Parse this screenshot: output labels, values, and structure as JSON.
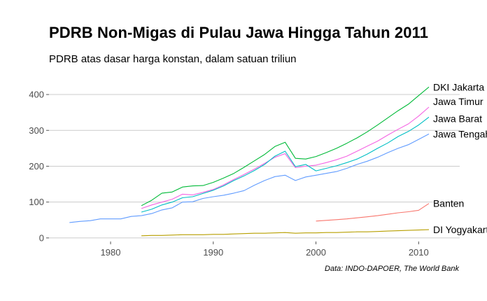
{
  "chart_data": {
    "type": "line",
    "title": "PDRB Non-Migas di Pulau Jawa Hingga Tahun 2011",
    "subtitle": "PDRB atas dasar harga konstan, dalam satuan triliun",
    "caption": "Data: INDO-DAPOER, The World Bank",
    "xlabel": "",
    "ylabel": "",
    "xlim": [
      1974,
      2014
    ],
    "ylim": [
      -10,
      445
    ],
    "x_ticks": [
      1980,
      1990,
      2000,
      2010
    ],
    "y_ticks": [
      0,
      100,
      200,
      300,
      400
    ],
    "grid": "horizontal",
    "legend": "direct labels at line ends",
    "series": [
      {
        "name": "DKI Jakarta",
        "color": "#00ba38",
        "x": [
          1983,
          1984,
          1985,
          1986,
          1987,
          1988,
          1989,
          1990,
          1991,
          1992,
          1993,
          1994,
          1995,
          1996,
          1997,
          1998,
          1999,
          2000,
          2001,
          2002,
          2003,
          2004,
          2005,
          2006,
          2007,
          2008,
          2009,
          2010,
          2011
        ],
        "y": [
          90,
          105,
          125,
          128,
          142,
          145,
          146,
          155,
          167,
          180,
          197,
          215,
          233,
          255,
          267,
          222,
          220,
          227,
          238,
          250,
          264,
          279,
          296,
          315,
          335,
          355,
          373,
          397,
          421
        ]
      },
      {
        "name": "Jawa Timur",
        "color": "#f564e3",
        "x": [
          1983,
          1984,
          1985,
          1986,
          1987,
          1988,
          1989,
          1990,
          1991,
          1992,
          1993,
          1994,
          1995,
          1996,
          1997,
          1998,
          1999,
          2000,
          2001,
          2002,
          2003,
          2004,
          2005,
          2006,
          2007,
          2008,
          2009,
          2010,
          2011
        ],
        "y": [
          82,
          92,
          100,
          108,
          122,
          120,
          127,
          135,
          148,
          163,
          177,
          192,
          208,
          225,
          235,
          196,
          200,
          203,
          210,
          218,
          228,
          242,
          256,
          270,
          287,
          303,
          318,
          340,
          365
        ]
      },
      {
        "name": "Jawa Barat",
        "color": "#00bfc4",
        "x": [
          1983,
          1984,
          1985,
          1986,
          1987,
          1988,
          1989,
          1990,
          1991,
          1992,
          1993,
          1994,
          1995,
          1996,
          1997,
          1998,
          1999,
          2000,
          2001,
          2002,
          2003,
          2004,
          2005,
          2006,
          2007,
          2008,
          2009,
          2010,
          2011
        ],
        "y": [
          72,
          80,
          92,
          100,
          112,
          115,
          124,
          133,
          145,
          160,
          173,
          188,
          205,
          228,
          242,
          199,
          205,
          187,
          194,
          201,
          210,
          220,
          234,
          250,
          265,
          283,
          297,
          315,
          337
        ]
      },
      {
        "name": "Jawa Tengah",
        "color": "#619cff",
        "x": [
          1976,
          1977,
          1978,
          1979,
          1980,
          1981,
          1982,
          1983,
          1984,
          1985,
          1986,
          1987,
          1988,
          1989,
          1990,
          1991,
          1992,
          1993,
          1994,
          1995,
          1996,
          1997,
          1998,
          1999,
          2000,
          2001,
          2002,
          2003,
          2004,
          2005,
          2006,
          2007,
          2008,
          2009,
          2010,
          2011
        ],
        "y": [
          43,
          46,
          48,
          53,
          53,
          53,
          60,
          62,
          68,
          78,
          84,
          100,
          101,
          110,
          115,
          119,
          125,
          132,
          147,
          160,
          171,
          175,
          160,
          170,
          175,
          180,
          185,
          194,
          205,
          214,
          225,
          238,
          250,
          260,
          275,
          290
        ]
      },
      {
        "name": "Banten",
        "color": "#f8766d",
        "x": [
          2000,
          2001,
          2002,
          2003,
          2004,
          2005,
          2006,
          2007,
          2008,
          2009,
          2010,
          2011
        ],
        "y": [
          47,
          49,
          51,
          53,
          56,
          59,
          62,
          66,
          70,
          73,
          77,
          96
        ]
      },
      {
        "name": "DI Yogyakarta",
        "color": "#b79f00",
        "x": [
          1983,
          1984,
          1985,
          1986,
          1987,
          1988,
          1989,
          1990,
          1991,
          1992,
          1993,
          1994,
          1995,
          1996,
          1997,
          1998,
          1999,
          2000,
          2001,
          2002,
          2003,
          2004,
          2005,
          2006,
          2007,
          2008,
          2009,
          2010,
          2011
        ],
        "y": [
          6,
          7,
          7,
          8,
          9,
          9,
          9,
          10,
          10,
          11,
          12,
          13,
          13,
          14,
          15,
          13,
          14,
          14,
          15,
          15,
          16,
          17,
          17,
          18,
          19,
          20,
          21,
          22,
          23
        ]
      }
    ]
  }
}
